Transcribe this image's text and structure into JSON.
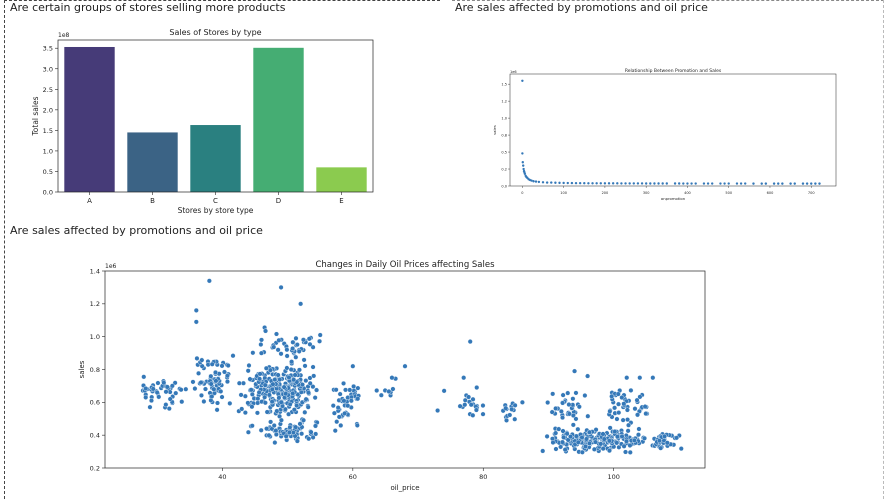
{
  "sections": {
    "groups_title": "Are certain groups of stores selling more products",
    "promo_title_top": "Are sales affected by promotions and oil price",
    "promo_title_bottom": "Are sales affected by promotions and oil price"
  },
  "chart_data": [
    {
      "type": "bar",
      "title": "Sales of Stores by type",
      "xlabel": "Stores by store type",
      "ylabel": "Total sales",
      "offset_label": "1e8",
      "categories": [
        "A",
        "B",
        "C",
        "D",
        "E"
      ],
      "values": [
        3.53,
        1.45,
        1.63,
        3.51,
        0.6
      ],
      "colors": [
        "#463b78",
        "#3b6385",
        "#2a8080",
        "#45ad73",
        "#8bcb4f"
      ],
      "ylim": [
        0,
        3.7
      ],
      "yticks": [
        0.0,
        0.5,
        1.0,
        1.5,
        2.0,
        2.5,
        3.0,
        3.5
      ],
      "yticklabels": [
        "0.0",
        "0.5",
        "1.0",
        "1.5",
        "2.0",
        "2.5",
        "3.0",
        "3.5"
      ],
      "grid": false
    },
    {
      "type": "scatter",
      "title": "Relationship Between Promotion and Sales",
      "xlabel": "onpromotion",
      "ylabel": "sales",
      "offset_label": "1e6",
      "color": "#3478b8",
      "xlim": [
        -30,
        760
      ],
      "ylim": [
        0,
        1.65
      ],
      "xticks": [
        0,
        100,
        200,
        300,
        400,
        500,
        600,
        700
      ],
      "xticklabels": [
        "0",
        "100",
        "200",
        "300",
        "400",
        "500",
        "600",
        "700"
      ],
      "yticks": [
        0.0,
        0.25,
        0.5,
        0.75,
        1.0,
        1.25,
        1.5
      ],
      "yticklabels": [
        "0.0",
        "0.2",
        "0.5",
        "0.8",
        "1.0",
        "1.2",
        "1.5"
      ],
      "points": [
        [
          0,
          1.55
        ],
        [
          0,
          0.48
        ],
        [
          1,
          0.35
        ],
        [
          2,
          0.3
        ],
        [
          3,
          0.25
        ],
        [
          4,
          0.22
        ],
        [
          5,
          0.2
        ],
        [
          6,
          0.18
        ],
        [
          8,
          0.15
        ],
        [
          10,
          0.13
        ],
        [
          12,
          0.12
        ],
        [
          15,
          0.1
        ],
        [
          18,
          0.09
        ],
        [
          22,
          0.08
        ],
        [
          27,
          0.07
        ],
        [
          33,
          0.065
        ],
        [
          40,
          0.06
        ],
        [
          50,
          0.055
        ],
        [
          60,
          0.05
        ],
        [
          70,
          0.05
        ],
        [
          80,
          0.048
        ],
        [
          90,
          0.046
        ],
        [
          100,
          0.045
        ],
        [
          110,
          0.044
        ],
        [
          120,
          0.043
        ],
        [
          130,
          0.042
        ],
        [
          140,
          0.042
        ],
        [
          150,
          0.041
        ],
        [
          160,
          0.04
        ],
        [
          170,
          0.04
        ],
        [
          180,
          0.04
        ],
        [
          190,
          0.04
        ],
        [
          200,
          0.039
        ],
        [
          210,
          0.039
        ],
        [
          220,
          0.039
        ],
        [
          230,
          0.039
        ],
        [
          240,
          0.038
        ],
        [
          250,
          0.038
        ],
        [
          260,
          0.038
        ],
        [
          270,
          0.038
        ],
        [
          280,
          0.038
        ],
        [
          290,
          0.038
        ],
        [
          300,
          0.037
        ],
        [
          310,
          0.037
        ],
        [
          320,
          0.037
        ],
        [
          330,
          0.037
        ],
        [
          340,
          0.037
        ],
        [
          350,
          0.037
        ],
        [
          370,
          0.037
        ],
        [
          380,
          0.037
        ],
        [
          390,
          0.036
        ],
        [
          400,
          0.036
        ],
        [
          410,
          0.036
        ],
        [
          420,
          0.036
        ],
        [
          440,
          0.036
        ],
        [
          450,
          0.036
        ],
        [
          460,
          0.036
        ],
        [
          480,
          0.036
        ],
        [
          490,
          0.036
        ],
        [
          500,
          0.036
        ],
        [
          520,
          0.036
        ],
        [
          530,
          0.036
        ],
        [
          540,
          0.036
        ],
        [
          560,
          0.035
        ],
        [
          580,
          0.035
        ],
        [
          590,
          0.035
        ],
        [
          610,
          0.035
        ],
        [
          620,
          0.035
        ],
        [
          630,
          0.035
        ],
        [
          650,
          0.035
        ],
        [
          660,
          0.035
        ],
        [
          680,
          0.035
        ],
        [
          690,
          0.035
        ],
        [
          700,
          0.035
        ],
        [
          710,
          0.035
        ],
        [
          720,
          0.035
        ]
      ]
    },
    {
      "type": "scatter",
      "title": "Changes in Daily Oil Prices affecting Sales",
      "xlabel": "oil_price",
      "ylabel": "sales",
      "offset_label": "1e6",
      "color": "#3478b8",
      "xlim": [
        22,
        114
      ],
      "ylim": [
        0.2,
        1.4
      ],
      "xticks": [
        40,
        60,
        80,
        100
      ],
      "xticklabels": [
        "40",
        "60",
        "80",
        "100"
      ],
      "yticks": [
        0.2,
        0.4,
        0.6,
        0.8,
        1.0,
        1.2,
        1.4
      ],
      "yticklabels": [
        "0.2",
        "0.4",
        "0.6",
        "0.8",
        "1.0",
        "1.2",
        "1.4"
      ],
      "clusters": [
        {
          "x": [
            27,
            35
          ],
          "y": [
            0.55,
            0.8
          ],
          "n": 45
        },
        {
          "x": [
            35,
            42
          ],
          "y": [
            0.55,
            0.9
          ],
          "n": 70
        },
        {
          "x": [
            42,
            55
          ],
          "y": [
            0.5,
            0.85
          ],
          "n": 260
        },
        {
          "x": [
            43,
            56
          ],
          "y": [
            0.35,
            0.5
          ],
          "n": 75
        },
        {
          "x": [
            44,
            56
          ],
          "y": [
            0.85,
            1.08
          ],
          "n": 45
        },
        {
          "x": [
            56,
            62
          ],
          "y": [
            0.4,
            0.75
          ],
          "n": 45
        },
        {
          "x": [
            62,
            70
          ],
          "y": [
            0.55,
            0.8
          ],
          "n": 8
        },
        {
          "x": [
            75,
            81
          ],
          "y": [
            0.5,
            0.65
          ],
          "n": 18
        },
        {
          "x": [
            82,
            86
          ],
          "y": [
            0.45,
            0.62
          ],
          "n": 14
        },
        {
          "x": [
            89,
            106
          ],
          "y": [
            0.28,
            0.45
          ],
          "n": 200
        },
        {
          "x": [
            88,
            98
          ],
          "y": [
            0.45,
            0.68
          ],
          "n": 35
        },
        {
          "x": [
            98,
            107
          ],
          "y": [
            0.45,
            0.72
          ],
          "n": 45
        },
        {
          "x": [
            104,
            111
          ],
          "y": [
            0.3,
            0.42
          ],
          "n": 35
        }
      ],
      "points": [
        [
          36,
          1.16
        ],
        [
          38,
          1.34
        ],
        [
          49,
          1.3
        ],
        [
          36,
          1.09
        ],
        [
          52,
          1.2
        ],
        [
          55,
          1.01
        ],
        [
          30,
          0.66
        ],
        [
          32,
          0.62
        ],
        [
          60,
          0.82
        ],
        [
          68,
          0.82
        ],
        [
          66,
          0.75
        ],
        [
          78,
          0.97
        ],
        [
          77,
          0.75
        ],
        [
          94,
          0.79
        ],
        [
          96,
          0.76
        ],
        [
          102,
          0.75
        ],
        [
          104,
          0.75
        ],
        [
          106,
          0.75
        ],
        [
          73,
          0.55
        ],
        [
          79,
          0.69
        ],
        [
          74,
          0.67
        ],
        [
          86,
          0.6
        ]
      ]
    }
  ]
}
